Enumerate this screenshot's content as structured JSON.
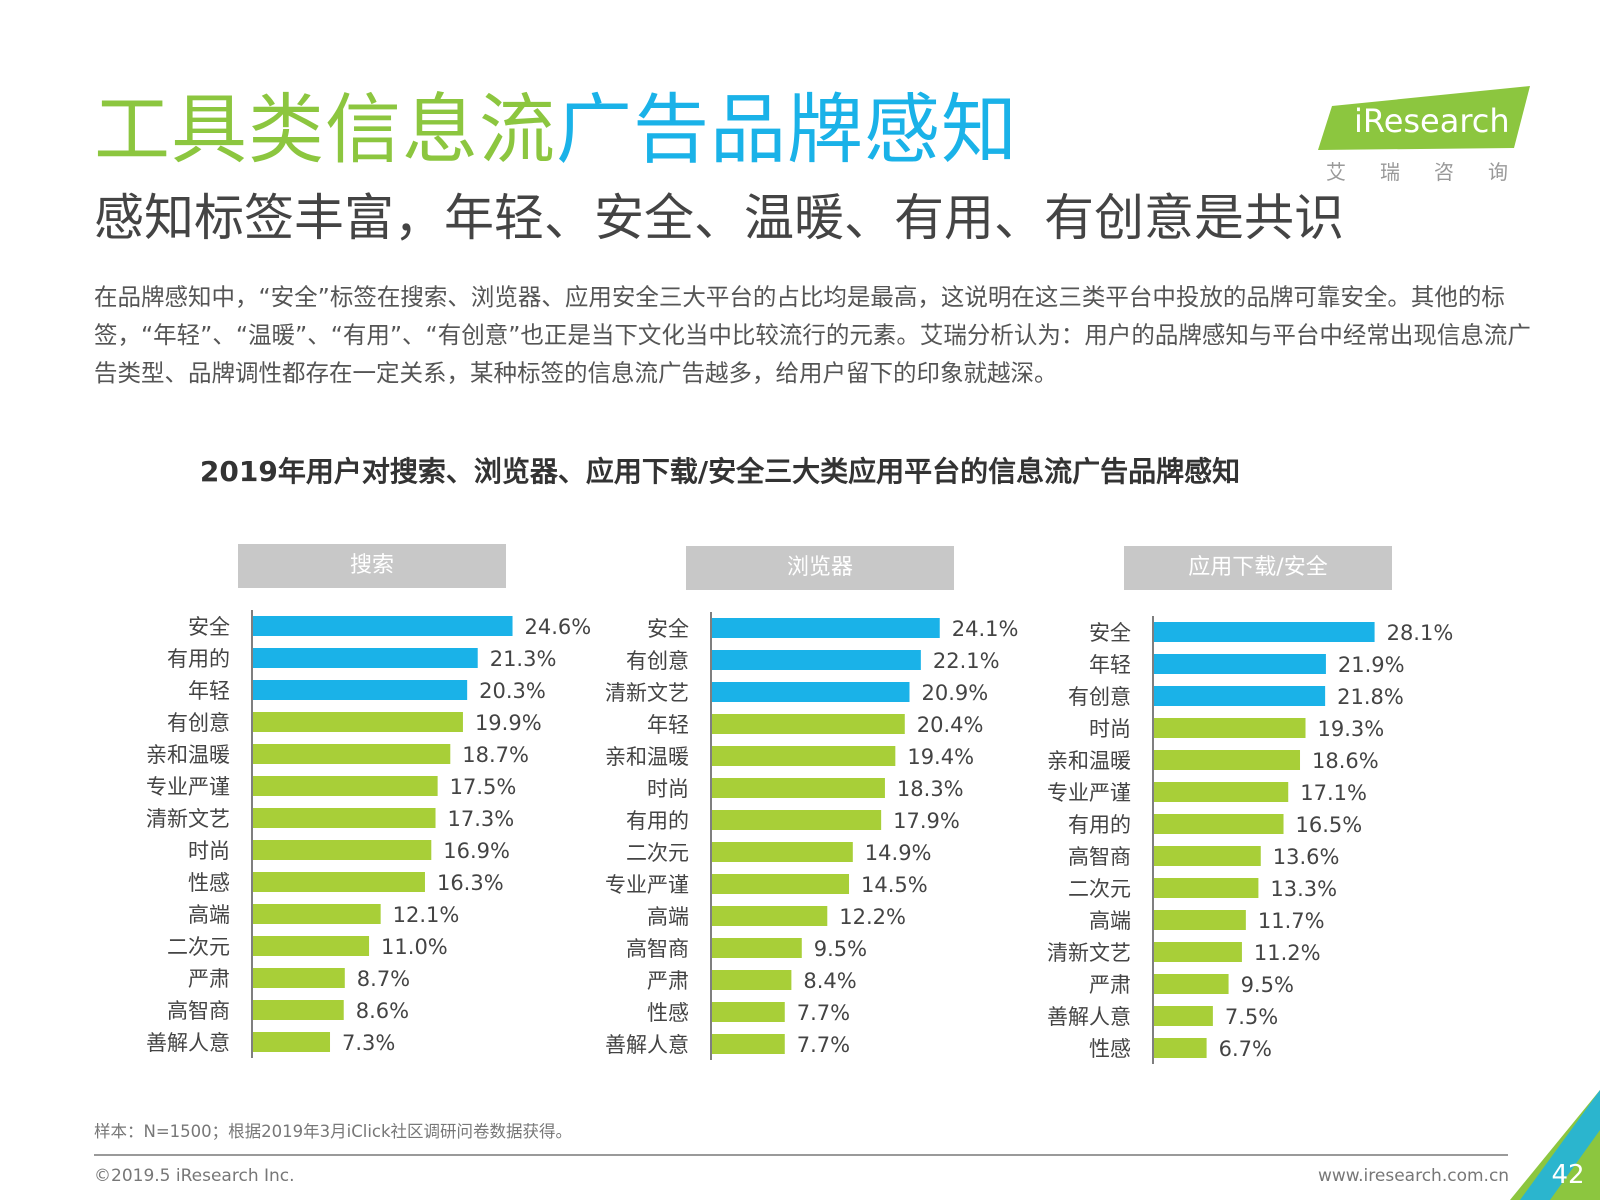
{
  "header": {
    "title_part1": "工具类信息流",
    "title_part2": "广告品牌感知",
    "subtitle": "感知标签丰富，年轻、安全、温暖、有用、有创意是共识",
    "intro": "在品牌感知中，“安全”标签在搜索、浏览器、应用安全三大平台的占比均是最高，这说明在这三类平台中投放的品牌可靠安全。其他的标签，“年轻”、“温暖”、“有用”、“有创意”也正是当下文化当中比较流行的元素。艾瑞分析认为：用户的品牌感知与平台中经常出现信息流广告类型、品牌调性都存在一定关系，某种标签的信息流广告越多，给用户留下的印象就越深。"
  },
  "logo": {
    "wordmark": "iResearch",
    "subtext": "艾瑞咨询",
    "color": "#8cc63f"
  },
  "colors": {
    "highlight": "#1ab2e8",
    "default": "#a8cf38"
  },
  "chart_data": [
    {
      "type": "bar",
      "orientation": "horizontal",
      "title": "搜索",
      "categories": [
        "安全",
        "有用的",
        "年轻",
        "有创意",
        "亲和温暖",
        "专业严谨",
        "清新文艺",
        "时尚",
        "性感",
        "高端",
        "二次元",
        "严肃",
        "高智商",
        "善解人意"
      ],
      "values": [
        24.6,
        21.3,
        20.3,
        19.9,
        18.7,
        17.5,
        17.3,
        16.9,
        16.3,
        12.1,
        11.0,
        8.7,
        8.6,
        7.3
      ],
      "labels": [
        "24.6%",
        "21.3%",
        "20.3%",
        "19.9%",
        "18.7%",
        "17.5%",
        "17.3%",
        "16.9%",
        "16.3%",
        "12.1%",
        "11.0%",
        "8.7%",
        "8.6%",
        "7.3%"
      ],
      "highlight_count": 3,
      "unit": "%"
    },
    {
      "type": "bar",
      "orientation": "horizontal",
      "title": "浏览器",
      "categories": [
        "安全",
        "有创意",
        "清新文艺",
        "年轻",
        "亲和温暖",
        "时尚",
        "有用的",
        "二次元",
        "专业严谨",
        "高端",
        "高智商",
        "严肃",
        "性感",
        "善解人意"
      ],
      "values": [
        24.1,
        22.1,
        20.9,
        20.4,
        19.4,
        18.3,
        17.9,
        14.9,
        14.5,
        12.2,
        9.5,
        8.4,
        7.7,
        7.7
      ],
      "labels": [
        "24.1%",
        "22.1%",
        "20.9%",
        "20.4%",
        "19.4%",
        "18.3%",
        "17.9%",
        "14.9%",
        "14.5%",
        "12.2%",
        "9.5%",
        "8.4%",
        "7.7%",
        "7.7%"
      ],
      "highlight_count": 3,
      "unit": "%"
    },
    {
      "type": "bar",
      "orientation": "horizontal",
      "title": "应用下载/安全",
      "categories": [
        "安全",
        "年轻",
        "有创意",
        "时尚",
        "亲和温暖",
        "专业严谨",
        "有用的",
        "高智商",
        "二次元",
        "高端",
        "清新文艺",
        "严肃",
        "善解人意",
        "性感"
      ],
      "values": [
        28.1,
        21.9,
        21.8,
        19.3,
        18.6,
        17.1,
        16.5,
        13.6,
        13.3,
        11.7,
        11.2,
        9.5,
        7.5,
        6.7
      ],
      "labels": [
        "28.1%",
        "21.9%",
        "21.8%",
        "19.3%",
        "18.6%",
        "17.1%",
        "16.5%",
        "13.6%",
        "13.3%",
        "11.7%",
        "11.2%",
        "9.5%",
        "7.5%",
        "6.7%"
      ],
      "highlight_count": 3,
      "unit": "%"
    }
  ],
  "chart": {
    "title": "2019年用户对搜索、浏览器、应用下载/安全三大类应用平台的信息流广告品牌感知"
  },
  "footer": {
    "note": "样本：N=1500；根据2019年3月iClick社区调研问卷数据获得。",
    "copyright": "©2019.5 iResearch Inc.",
    "website": "www.iresearch.com.cn",
    "page_number": "42"
  }
}
